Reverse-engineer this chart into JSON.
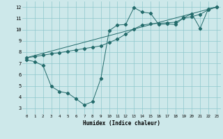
{
  "xlabel": "Humidex (Indice chaleur)",
  "xlim": [
    -0.5,
    23.5
  ],
  "ylim": [
    2.5,
    12.5
  ],
  "xticks": [
    0,
    1,
    2,
    3,
    4,
    5,
    6,
    7,
    8,
    9,
    10,
    11,
    12,
    13,
    14,
    15,
    16,
    17,
    18,
    19,
    20,
    21,
    22,
    23
  ],
  "yticks": [
    3,
    4,
    5,
    6,
    7,
    8,
    9,
    10,
    11,
    12
  ],
  "bg_color": "#cde8ea",
  "line_color": "#236b6b",
  "line1_x": [
    0,
    1,
    2,
    3,
    4,
    5,
    6,
    7,
    8,
    9,
    10,
    11,
    12,
    13,
    14,
    15,
    16,
    17,
    18,
    19,
    20,
    21,
    22,
    23
  ],
  "line1_y": [
    7.3,
    7.15,
    6.8,
    4.95,
    4.5,
    4.35,
    3.85,
    3.3,
    3.6,
    5.65,
    9.9,
    10.4,
    10.45,
    11.95,
    11.55,
    11.45,
    10.45,
    10.5,
    10.45,
    11.05,
    11.4,
    10.1,
    11.85,
    12.0
  ],
  "line2_x": [
    0,
    23
  ],
  "line2_y": [
    7.5,
    12.0
  ],
  "line3_x": [
    0,
    1,
    2,
    3,
    4,
    5,
    6,
    7,
    8,
    9,
    10,
    11,
    12,
    13,
    14,
    15,
    16,
    17,
    18,
    19,
    20,
    21,
    22,
    23
  ],
  "line3_y": [
    7.5,
    7.6,
    7.72,
    7.84,
    7.95,
    8.07,
    8.19,
    8.31,
    8.43,
    8.55,
    8.85,
    9.15,
    9.6,
    10.05,
    10.4,
    10.5,
    10.55,
    10.6,
    10.65,
    11.0,
    11.15,
    11.35,
    11.75,
    12.0
  ],
  "markersize": 2.2
}
